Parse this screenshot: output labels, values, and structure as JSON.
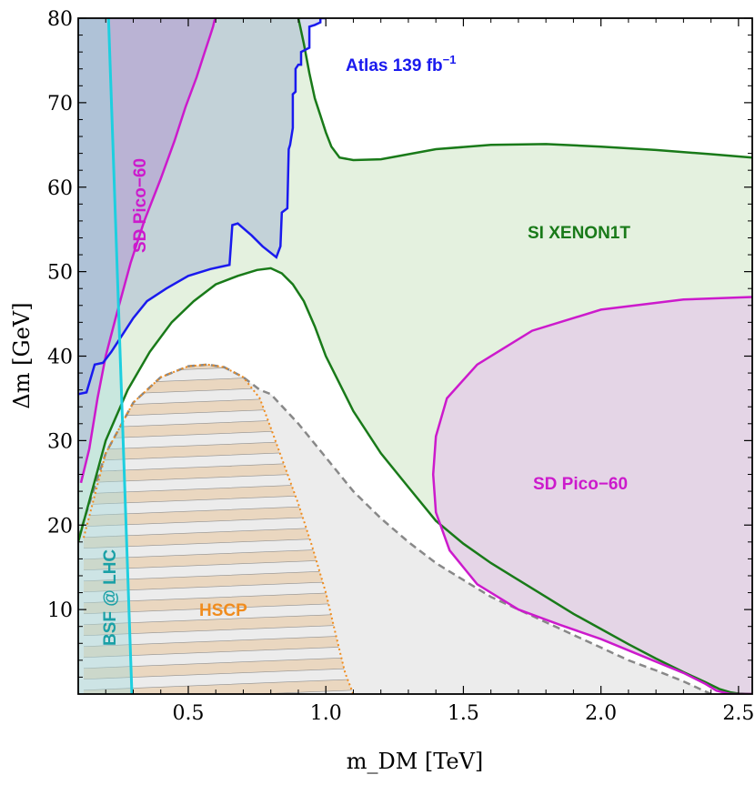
{
  "chart_data": {
    "type": "area",
    "xlabel": "m_DM [TeV]",
    "ylabel": "Δm [GeV]",
    "xlim": [
      0.1,
      2.55
    ],
    "ylim": [
      0,
      80
    ],
    "x_ticks": [
      "0.5",
      "1.0",
      "1.5",
      "2.0",
      "2.5"
    ],
    "x_tick_values": [
      0.5,
      1.0,
      1.5,
      2.0,
      2.5
    ],
    "y_ticks": [
      "10",
      "20",
      "30",
      "40",
      "50",
      "60",
      "70",
      "80"
    ],
    "y_tick_values": [
      10,
      20,
      30,
      40,
      50,
      60,
      70,
      80
    ],
    "grid": false,
    "labels": {
      "atlas": "Atlas 139 fb",
      "atlas_sup": "−1",
      "pico_left": "SD Pico−60",
      "pico_right": "SD Pico−60",
      "xenon": "SI XENON1T",
      "hscp": "HSCP",
      "bsf": "BSF @ LHC"
    },
    "colors": {
      "atlas": "#1a1aee",
      "pico": "#cc1acc",
      "xenon": "#197a19",
      "hscp": "#f08c1e",
      "bsf": "#1ecfdf",
      "bsf_label": "#1aa0a6",
      "unitarity": "#888888"
    },
    "series": [
      {
        "name": "Atlas 139 fb−1",
        "x": [
          0.1,
          0.13,
          0.16,
          0.19,
          0.22,
          0.26,
          0.3,
          0.35,
          0.42,
          0.5,
          0.58,
          0.62,
          0.65,
          0.66,
          0.68,
          0.73,
          0.77,
          0.82,
          0.835,
          0.84,
          0.86,
          0.865,
          0.87,
          0.88,
          0.88,
          0.89,
          0.89,
          0.9,
          0.91,
          0.91,
          0.94,
          0.94,
          0.96,
          0.98,
          0.98,
          0.985,
          1.0
        ],
        "y": [
          35.5,
          35.7,
          39,
          39.2,
          40.5,
          42.5,
          44.5,
          46.5,
          48,
          49.5,
          50.3,
          50.6,
          50.8,
          55.5,
          55.7,
          54.3,
          53,
          51.7,
          53,
          57,
          57.5,
          64.5,
          65,
          67,
          71,
          71.3,
          74,
          74.5,
          74.5,
          76,
          76.5,
          79,
          79.2,
          79.5,
          80,
          80,
          80
        ]
      },
      {
        "name": "SI XENON1T",
        "x_top": [
          0.9,
          0.92,
          0.94,
          0.96,
          0.98,
          1.0,
          1.02,
          1.05,
          1.1,
          1.2,
          1.4,
          1.6,
          1.8,
          2.0,
          2.2,
          2.4,
          2.55
        ],
        "y_top": [
          80,
          77,
          73.5,
          70.5,
          68.5,
          66.5,
          64.8,
          63.5,
          63.2,
          63.3,
          64.5,
          65,
          65.1,
          64.8,
          64.4,
          63.9,
          63.5
        ],
        "x_bottom": [
          0.1,
          0.15,
          0.2,
          0.28,
          0.36,
          0.44,
          0.52,
          0.6,
          0.68,
          0.75,
          0.8,
          0.84,
          0.88,
          0.92,
          0.96,
          1.0,
          1.1,
          1.2,
          1.3,
          1.4,
          1.5,
          1.6,
          1.7,
          1.8,
          1.9,
          2.0,
          2.1,
          2.2,
          2.3,
          2.38,
          2.43,
          2.47,
          2.5,
          2.55
        ],
        "y_bottom": [
          18,
          24,
          30,
          36,
          40.5,
          44,
          46.5,
          48.5,
          49.5,
          50.2,
          50.4,
          49.8,
          48.5,
          46.5,
          43.5,
          40,
          33.5,
          28.5,
          24.5,
          20.5,
          17.8,
          15.5,
          13.5,
          11.5,
          9.5,
          7.7,
          5.9,
          4.2,
          2.6,
          1.4,
          0.6,
          0.2,
          0.05,
          0
        ]
      },
      {
        "name": "SD Pico−60 (left)",
        "x": [
          0.11,
          0.14,
          0.17,
          0.2,
          0.24,
          0.29,
          0.34,
          0.4,
          0.45,
          0.49,
          0.53,
          0.56,
          0.58,
          0.59,
          0.595,
          0.6
        ],
        "y": [
          25,
          29,
          35,
          40,
          45,
          51,
          56,
          61,
          65.5,
          69.5,
          73,
          76,
          78,
          79,
          79.7,
          80
        ]
      },
      {
        "name": "SD Pico−60 (right)",
        "x": [
          2.55,
          2.3,
          2.0,
          1.75,
          1.55,
          1.44,
          1.4,
          1.39,
          1.4,
          1.45,
          1.55,
          1.7,
          1.85,
          2.0,
          2.15,
          2.3,
          2.38,
          2.42,
          2.47,
          2.55
        ],
        "y": [
          47,
          46.7,
          45.5,
          43,
          39,
          35,
          30.5,
          26,
          21.5,
          17,
          13,
          10,
          8.2,
          6.5,
          4.5,
          2.5,
          1.2,
          0.4,
          0,
          0
        ]
      },
      {
        "name": "HSCP",
        "x": [
          0.12,
          0.2,
          0.3,
          0.4,
          0.5,
          0.57,
          0.63,
          0.7,
          0.76,
          0.8,
          0.85,
          0.9,
          0.95,
          1.0,
          1.04,
          1.07,
          1.1
        ],
        "y": [
          18.5,
          28.5,
          34.5,
          37.5,
          38.8,
          39,
          38.7,
          37.5,
          35,
          31.5,
          27,
          22.5,
          17.5,
          12,
          6.5,
          2.5,
          0
        ]
      },
      {
        "name": "unitarity (dashed)",
        "x": [
          0.1,
          0.2,
          0.3,
          0.4,
          0.5,
          0.57,
          0.63,
          0.7,
          0.76,
          0.8,
          0.9,
          1.0,
          1.1,
          1.2,
          1.3,
          1.4,
          1.5,
          1.6,
          1.7,
          1.8,
          1.9,
          2.0,
          2.1,
          2.2,
          2.3,
          2.4
        ],
        "y": [
          18.5,
          28.5,
          34.5,
          37.5,
          38.8,
          39,
          38.7,
          37.5,
          36,
          35.5,
          32,
          28,
          24,
          20.8,
          18,
          15.5,
          13.5,
          11.5,
          10,
          8.5,
          7,
          5.5,
          4,
          2.8,
          1.5,
          0
        ]
      },
      {
        "name": "BSF @ LHC",
        "x": [
          0.21,
          0.295
        ],
        "y": [
          80,
          0
        ]
      }
    ]
  }
}
